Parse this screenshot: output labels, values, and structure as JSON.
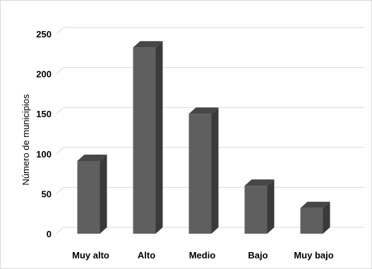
{
  "chart_data": {
    "type": "bar",
    "style": "3d-column",
    "categories": [
      "Muy alto",
      "Alto",
      "Medio",
      "Bajo",
      "Muy bajo"
    ],
    "values": [
      91,
      233,
      150,
      60,
      32
    ],
    "title": "",
    "xlabel": "",
    "ylabel": "Número de municipios",
    "ylim": [
      0,
      250
    ],
    "yticks": [
      0,
      50,
      100,
      150,
      200,
      250
    ],
    "grid": true,
    "legend": "none",
    "colors": {
      "bar_front": "#5f5f5f",
      "bar_side": "#3a3a3a",
      "bar_top": "#474747",
      "gridline": "#d9d9d9"
    }
  }
}
